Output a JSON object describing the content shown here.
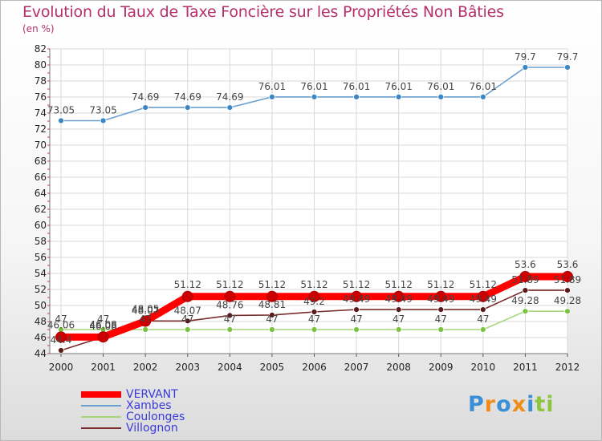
{
  "title": "Evolution du Taux de Taxe Foncière sur les Propriétés Non Bâties",
  "subtitle": "(en %)",
  "logo": {
    "text": "Proxiti",
    "letters": [
      "P",
      "r",
      "o",
      "x",
      "i",
      "t",
      "i"
    ],
    "colors": [
      "#3a8fd6",
      "#f08c1a",
      "#3a8fd6",
      "#f08c1a",
      "#3a8fd6",
      "#8cc63f",
      "#8cc63f"
    ]
  },
  "chart_data": {
    "type": "line",
    "title": "Evolution du Taux de Taxe Foncière sur les Propriétés Non Bâties",
    "ylabel": "(en %)",
    "xlabel": "",
    "ylim": [
      44,
      82
    ],
    "yticks": [
      44,
      46,
      48,
      50,
      52,
      54,
      56,
      58,
      60,
      62,
      64,
      66,
      68,
      70,
      72,
      74,
      76,
      78,
      80,
      82
    ],
    "categories": [
      "2000",
      "2001",
      "2002",
      "2003",
      "2004",
      "2005",
      "2006",
      "2007",
      "2008",
      "2009",
      "2010",
      "2011",
      "2012"
    ],
    "grid": true,
    "legend_position": "bottom-left",
    "series": [
      {
        "name": "VERVANT",
        "color": "#ff0000",
        "marker_color": "#cc0000",
        "emphasis": true,
        "values": [
          46.06,
          46.08,
          48.05,
          51.12,
          51.12,
          51.12,
          51.12,
          51.12,
          51.12,
          51.12,
          51.12,
          53.6,
          53.6
        ],
        "labels": [
          "46.06",
          "46.08",
          "48.05",
          "51.12",
          "51.12",
          "51.12",
          "51.12",
          "51.12",
          "51.12",
          "51.12",
          "51.12",
          "53.6",
          "53.6"
        ]
      },
      {
        "name": "Xambes",
        "color": "#6a9fd0",
        "marker_color": "#3b87c6",
        "emphasis": false,
        "values": [
          73.05,
          73.05,
          74.69,
          74.69,
          74.69,
          76.01,
          76.01,
          76.01,
          76.01,
          76.01,
          76.01,
          79.7,
          79.7
        ],
        "labels": [
          "73.05",
          "73.05",
          "74.69",
          "74.69",
          "74.69",
          "76.01",
          "76.01",
          "76.01",
          "76.01",
          "76.01",
          "76.01",
          "79.7",
          "79.7"
        ]
      },
      {
        "name": "Coulonges",
        "color": "#a6d67a",
        "marker_color": "#7cc242",
        "emphasis": false,
        "values": [
          47,
          47,
          47,
          47,
          47,
          47,
          47,
          47,
          47,
          47,
          47,
          49.28,
          49.28
        ],
        "labels": [
          "47",
          "47",
          "47",
          "47",
          "47",
          "47",
          "47",
          "47",
          "47",
          "47",
          "47",
          "49.28",
          "49.28"
        ]
      },
      {
        "name": "Villognon",
        "color": "#7a2e2e",
        "marker_color": "#5a1a1a",
        "emphasis": false,
        "values": [
          44.4,
          46.08,
          48.07,
          48.07,
          48.76,
          48.81,
          49.2,
          49.49,
          49.49,
          49.49,
          49.49,
          51.89,
          51.89
        ],
        "labels": [
          "44.4",
          "46.08",
          "48.07",
          "48.07",
          "48.76",
          "48.81",
          "49.2",
          "49.49",
          "49.49",
          "49.49",
          "49.49",
          "51.89",
          "51.89"
        ]
      }
    ]
  }
}
